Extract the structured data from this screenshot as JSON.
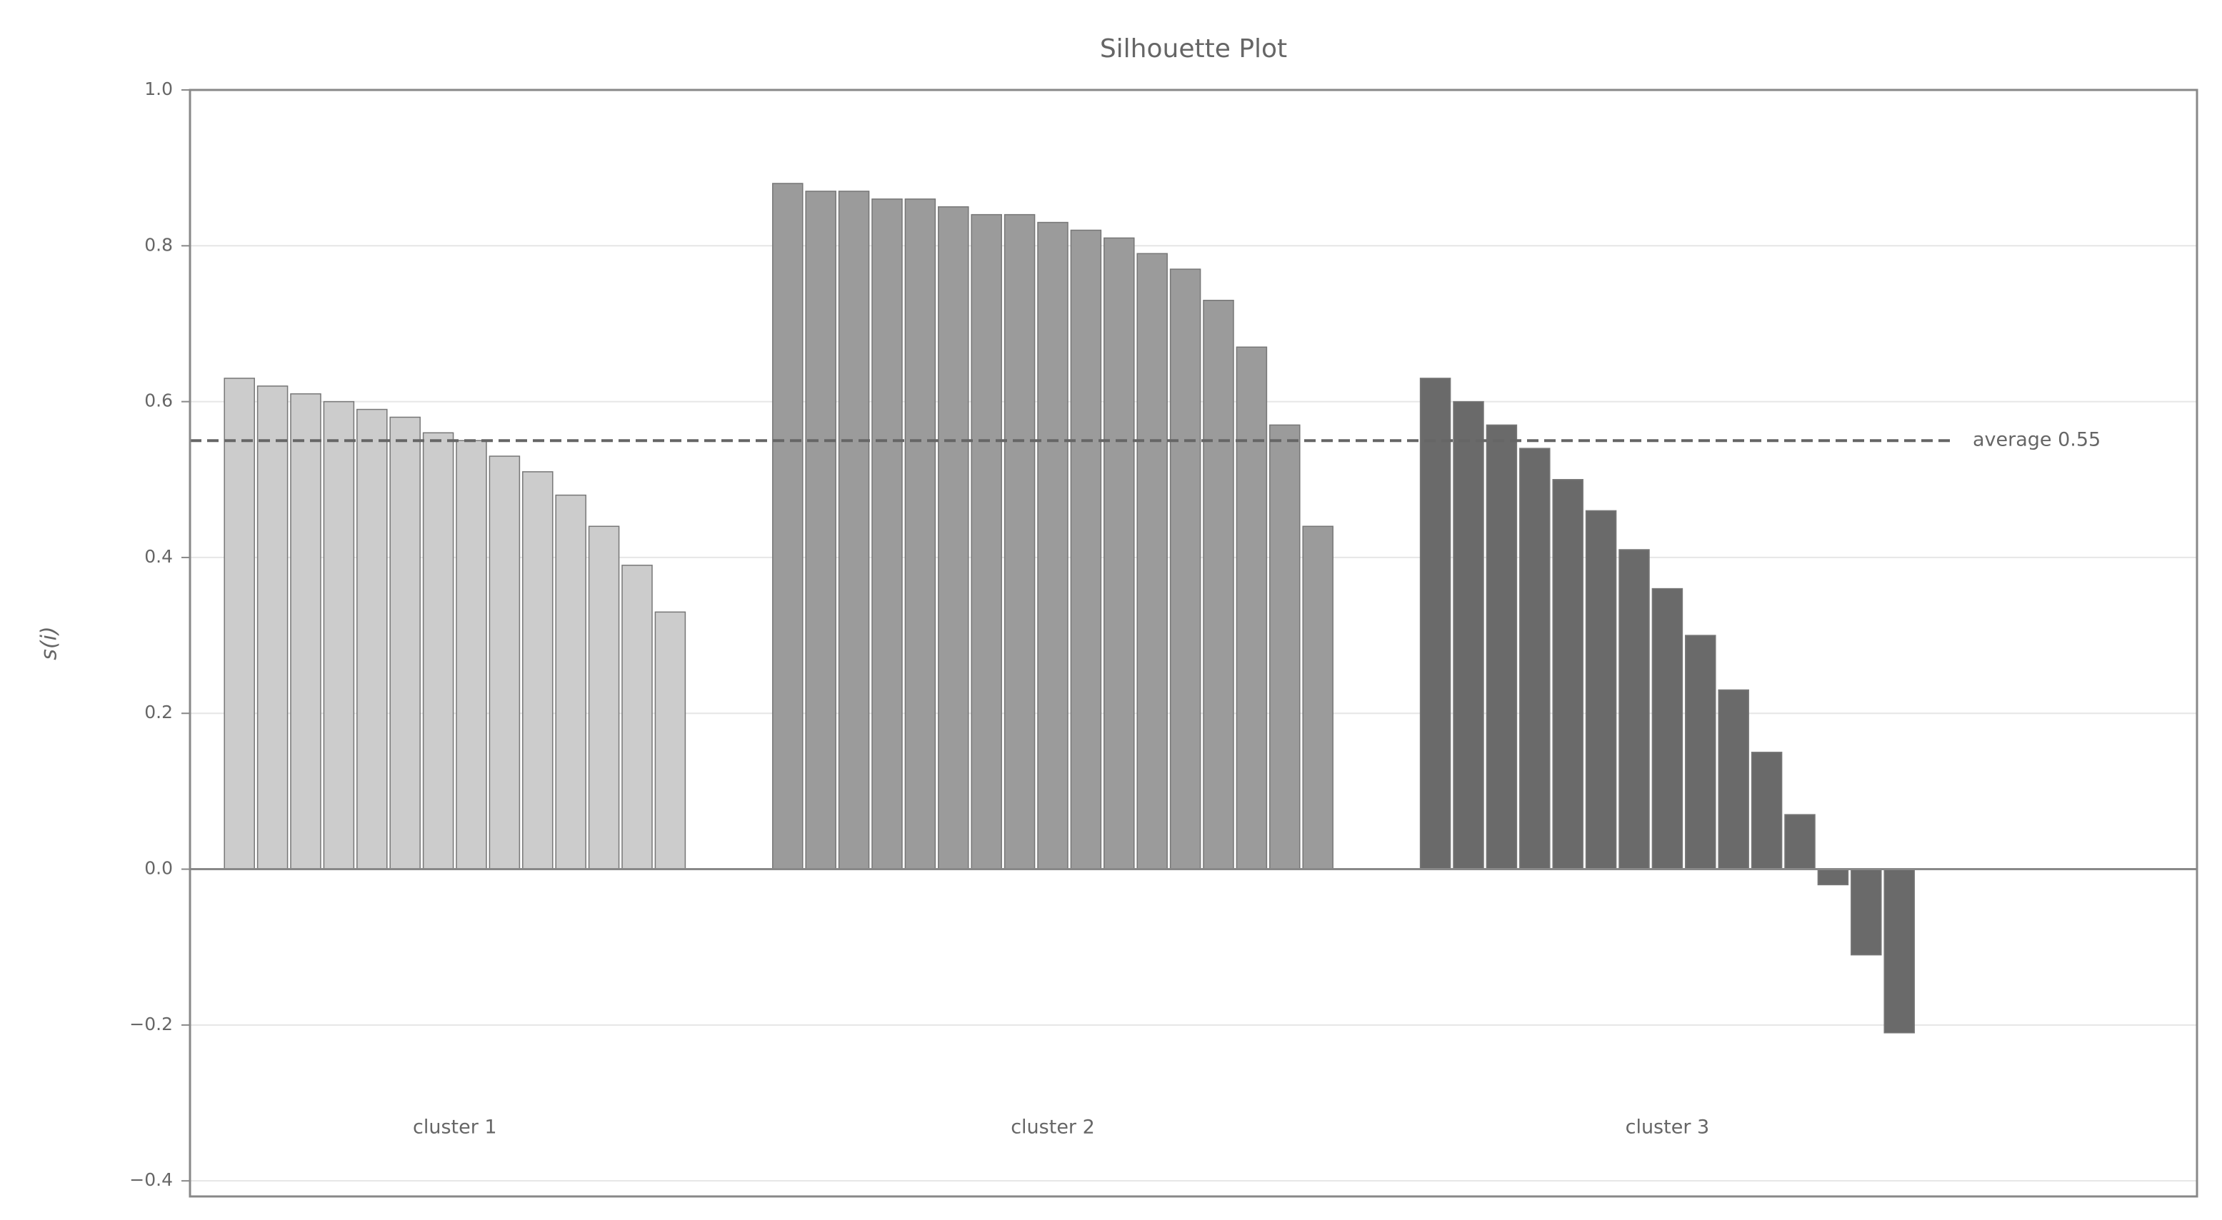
{
  "chart_data": {
    "type": "bar",
    "title": "Silhouette Plot",
    "y_label": "s(i)",
    "series": [
      {
        "name": "cluster 1",
        "color": "#cccccc",
        "values": [
          0.63,
          0.62,
          0.61,
          0.6,
          0.59,
          0.58,
          0.56,
          0.55,
          0.53,
          0.51,
          0.48,
          0.44,
          0.39,
          0.33
        ]
      },
      {
        "name": "cluster 2",
        "color": "#9b9b9b",
        "values": [
          0.88,
          0.87,
          0.87,
          0.86,
          0.86,
          0.85,
          0.84,
          0.84,
          0.83,
          0.82,
          0.81,
          0.79,
          0.77,
          0.73,
          0.67,
          0.57,
          0.44
        ]
      },
      {
        "name": "cluster 3",
        "color": "#6a6a6a",
        "values": [
          0.63,
          0.6,
          0.57,
          0.54,
          0.5,
          0.46,
          0.41,
          0.36,
          0.3,
          0.23,
          0.15,
          0.07,
          -0.02,
          -0.11,
          -0.21
        ]
      }
    ],
    "average": {
      "value": 0.55,
      "label": "average 0.55"
    },
    "ylim": [
      -0.42,
      1.0
    ],
    "yticks": [
      {
        "value": -0.4,
        "label": "−0.4"
      },
      {
        "value": -0.2,
        "label": "−0.2"
      },
      {
        "value": 0,
        "label": "0.0"
      },
      0.2,
      0.4,
      0.6,
      0.8,
      {
        "value": 1,
        "label": "1.0"
      }
    ],
    "grid": true
  }
}
